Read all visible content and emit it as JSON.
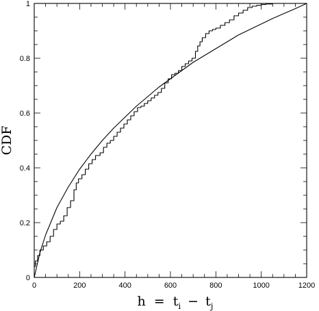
{
  "chart_data": {
    "type": "line",
    "title": "",
    "xlabel": "h = t_i − t_j",
    "xlabel_parts": {
      "lhs": "h",
      "eq": "=",
      "t1": "t",
      "s1": "i",
      "minus": "−",
      "t2": "t",
      "s2": "j"
    },
    "ylabel": "CDF",
    "xlim": [
      0,
      1200
    ],
    "ylim": [
      0,
      1
    ],
    "xticks": [
      0,
      200,
      400,
      600,
      800,
      1000,
      1200
    ],
    "xtick_labels": [
      "0",
      "200",
      "400",
      "600",
      "800",
      "1000",
      "1200"
    ],
    "yticks": [
      0,
      0.2,
      0.4,
      0.6,
      0.8,
      1
    ],
    "ytick_labels": [
      "0",
      "0.2",
      "0.4",
      "0.6",
      "0.8",
      "1"
    ],
    "grid": false,
    "series": [
      {
        "style": "smooth",
        "x": [
          0,
          25,
          50,
          100,
          150,
          200,
          250,
          300,
          350,
          400,
          450,
          500,
          550,
          600,
          650,
          700,
          750,
          800,
          850,
          900,
          950,
          1000,
          1050,
          1100,
          1150,
          1200
        ],
        "y": [
          0.0,
          0.09,
          0.155,
          0.255,
          0.33,
          0.395,
          0.45,
          0.5,
          0.545,
          0.585,
          0.625,
          0.66,
          0.695,
          0.725,
          0.755,
          0.785,
          0.81,
          0.835,
          0.86,
          0.885,
          0.905,
          0.925,
          0.945,
          0.963,
          0.981,
          1.0
        ]
      },
      {
        "style": "step",
        "x": [
          0,
          5,
          15,
          25,
          40,
          55,
          70,
          85,
          100,
          115,
          130,
          145,
          160,
          175,
          185,
          195,
          210,
          225,
          240,
          255,
          270,
          290,
          305,
          320,
          335,
          350,
          365,
          380,
          395,
          410,
          425,
          440,
          455,
          470,
          485,
          500,
          515,
          530,
          545,
          560,
          575,
          590,
          605,
          620,
          635,
          650,
          665,
          680,
          695,
          710,
          720,
          730,
          740,
          755,
          770,
          785,
          800,
          820,
          840,
          860,
          880,
          900,
          920,
          940,
          960,
          980,
          1000,
          1020,
          1050
        ],
        "y": [
          0.04,
          0.06,
          0.08,
          0.1,
          0.115,
          0.13,
          0.15,
          0.175,
          0.195,
          0.205,
          0.225,
          0.255,
          0.28,
          0.32,
          0.345,
          0.36,
          0.375,
          0.395,
          0.415,
          0.43,
          0.445,
          0.455,
          0.475,
          0.49,
          0.5,
          0.515,
          0.53,
          0.545,
          0.56,
          0.575,
          0.59,
          0.605,
          0.62,
          0.625,
          0.635,
          0.645,
          0.655,
          0.665,
          0.675,
          0.69,
          0.71,
          0.725,
          0.74,
          0.745,
          0.755,
          0.77,
          0.78,
          0.79,
          0.8,
          0.825,
          0.845,
          0.86,
          0.875,
          0.89,
          0.9,
          0.905,
          0.91,
          0.92,
          0.93,
          0.94,
          0.955,
          0.965,
          0.975,
          0.985,
          0.99,
          0.993,
          0.996,
          0.998,
          1.0
        ]
      }
    ]
  }
}
